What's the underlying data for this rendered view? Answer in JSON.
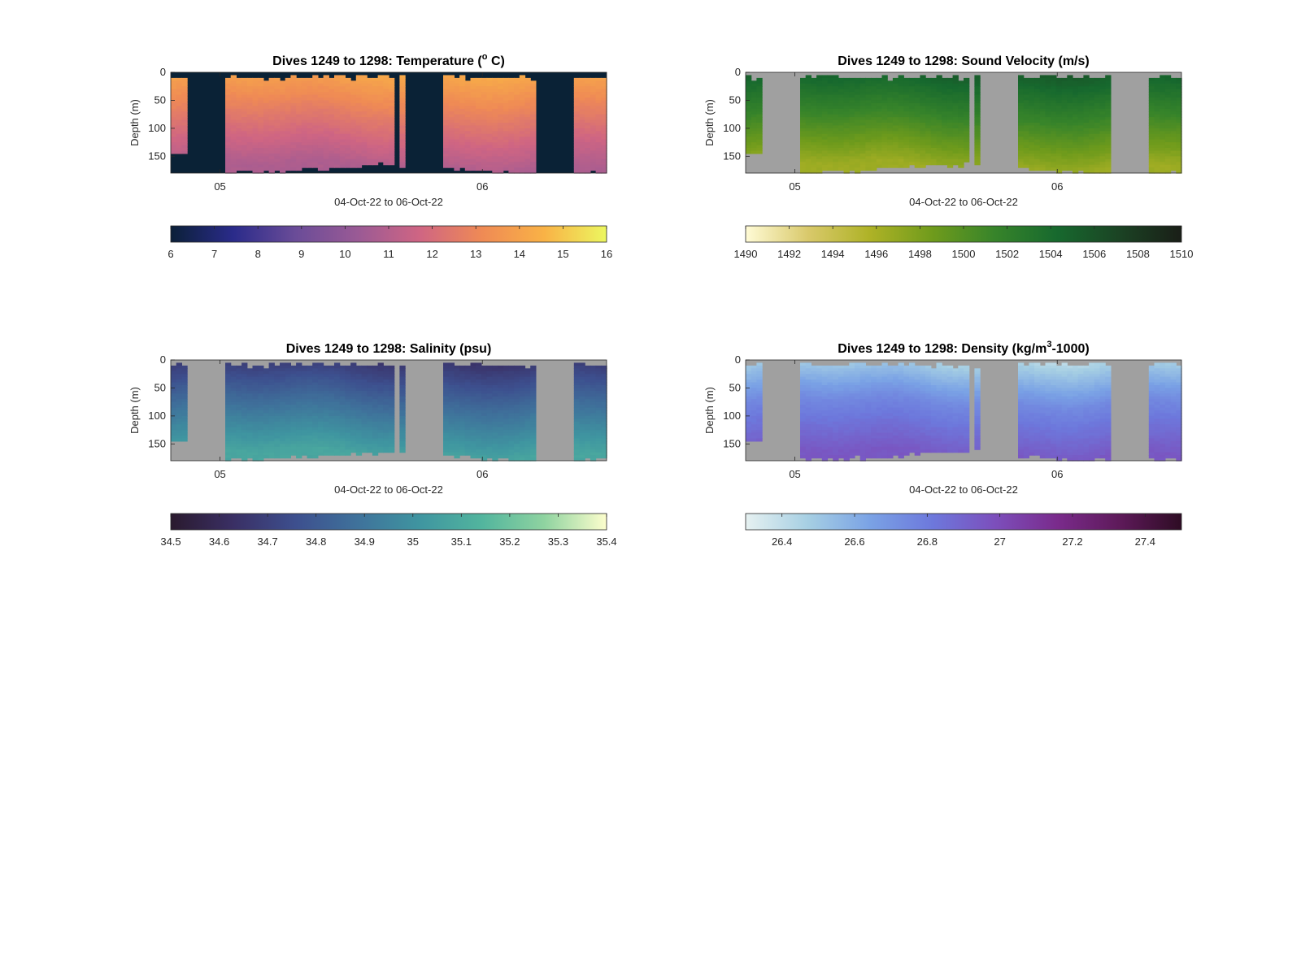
{
  "chart_data": [
    {
      "type": "heatmap",
      "title": "Dives 1249 to 1298: Temperature (",
      "title_sup": "o",
      "title_end": " C)",
      "xlabel": "04-Oct-22 to 06-Oct-22",
      "ylabel": "Depth (m)",
      "x_ticks": [
        "05",
        "06"
      ],
      "y_ticks": [
        0,
        50,
        100,
        150
      ],
      "ylim": [
        0,
        180
      ],
      "colorbar": {
        "ticks": [
          6,
          7,
          8,
          9,
          10,
          11,
          12,
          13,
          14,
          15,
          16
        ],
        "min": 6,
        "max": 16,
        "colormap": [
          "#0b2038",
          "#2a2b8a",
          "#6a4c98",
          "#9a5a95",
          "#cf6583",
          "#ef8a55",
          "#f9b246",
          "#ecf760"
        ]
      },
      "nodata_color": "#0a2236",
      "profile": {
        "surface": 14.2,
        "mid": 12.6,
        "bottom": 10.8
      }
    },
    {
      "type": "heatmap",
      "title": "Dives 1249 to 1298: Sound Velocity (m/s)",
      "xlabel": "04-Oct-22 to 06-Oct-22",
      "ylabel": "Depth (m)",
      "x_ticks": [
        "05",
        "06"
      ],
      "y_ticks": [
        0,
        50,
        100,
        150
      ],
      "ylim": [
        0,
        180
      ],
      "colorbar": {
        "ticks": [
          1490,
          1492,
          1494,
          1496,
          1498,
          1500,
          1502,
          1504,
          1506,
          1508,
          1510
        ],
        "min": 1490,
        "max": 1510,
        "colormap": [
          "#fffbd6",
          "#d9c96b",
          "#aeb226",
          "#6f9b1c",
          "#37842a",
          "#17692e",
          "#1b4324",
          "#1a1e17"
        ]
      },
      "nodata_color": "#a0a0a0",
      "profile": {
        "surface": 1505.2,
        "mid": 1501.5,
        "bottom": 1496.5
      }
    },
    {
      "type": "heatmap",
      "title": "Dives 1249 to 1298: Salinity (psu)",
      "xlabel": "04-Oct-22 to 06-Oct-22",
      "ylabel": "Depth (m)",
      "x_ticks": [
        "05",
        "06"
      ],
      "y_ticks": [
        0,
        50,
        100,
        150
      ],
      "ylim": [
        0,
        180
      ],
      "colorbar": {
        "ticks": [
          34.5,
          34.6,
          34.7,
          34.8,
          34.9,
          35,
          35.1,
          35.2,
          35.3,
          35.4
        ],
        "min": 34.5,
        "max": 35.4,
        "colormap": [
          "#2a1a2e",
          "#3a2f64",
          "#3d4f8e",
          "#3f729b",
          "#3f95a0",
          "#52b59e",
          "#8fd3a0",
          "#fdfecd"
        ]
      },
      "nodata_color": "#a0a0a0",
      "profile": {
        "surface": 34.66,
        "mid": 34.86,
        "bottom": 35.08
      }
    },
    {
      "type": "heatmap",
      "title": "Dives 1249 to 1298: Density (kg/m",
      "title_sup": "3",
      "title_end": "-1000)",
      "xlabel": "04-Oct-22 to 06-Oct-22",
      "ylabel": "Depth (m)",
      "x_ticks": [
        "05",
        "06"
      ],
      "y_ticks": [
        0,
        50,
        100,
        150
      ],
      "ylim": [
        0,
        180
      ],
      "colorbar": {
        "ticks": [
          26.4,
          26.6,
          26.8,
          27,
          27.2,
          27.4
        ],
        "min": 26.3,
        "max": 27.5,
        "colormap": [
          "#e6f1f1",
          "#a6cfe3",
          "#7aa2e5",
          "#6d78dc",
          "#7c4fbc",
          "#7a2b8c",
          "#5e1a5a",
          "#2e0c24"
        ]
      },
      "nodata_color": "#a0a0a0",
      "profile": {
        "surface": 26.45,
        "mid": 26.75,
        "bottom": 26.95
      }
    }
  ]
}
